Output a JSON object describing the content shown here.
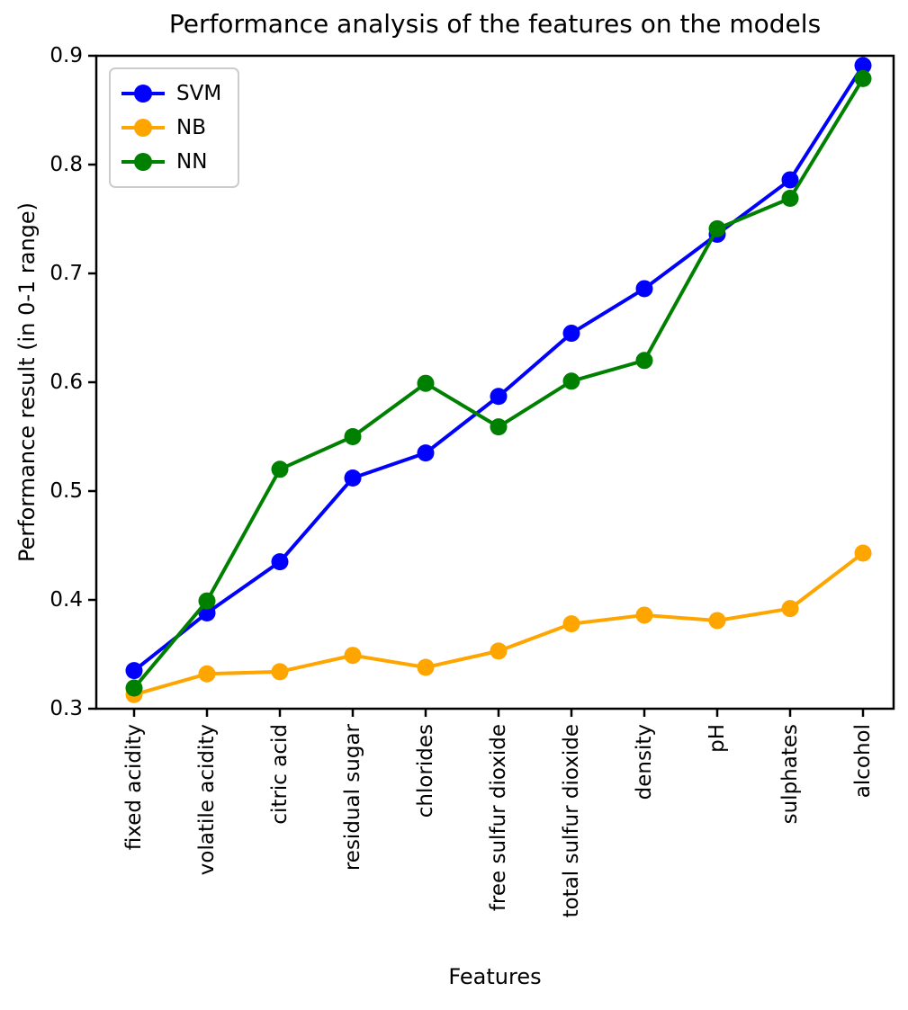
{
  "chart_data": {
    "type": "line",
    "title": "Performance analysis of the features on the models",
    "xlabel": "Features",
    "ylabel": "Performance result (in 0-1 range)",
    "categories": [
      "fixed acidity",
      "volatile acidity",
      "citric acid",
      "residual sugar",
      "chlorides",
      "free sulfur dioxide",
      "total sulfur dioxide",
      "density",
      "pH",
      "sulphates",
      "alcohol"
    ],
    "series": [
      {
        "name": "SVM",
        "color": "#0000ff",
        "values": [
          0.335,
          0.388,
          0.435,
          0.512,
          0.535,
          0.587,
          0.645,
          0.686,
          0.736,
          0.786,
          0.891
        ]
      },
      {
        "name": "NB",
        "color": "#ffa500",
        "values": [
          0.313,
          0.332,
          0.334,
          0.349,
          0.338,
          0.353,
          0.378,
          0.386,
          0.381,
          0.392,
          0.443
        ]
      },
      {
        "name": "NN",
        "color": "#008000",
        "values": [
          0.319,
          0.399,
          0.52,
          0.55,
          0.599,
          0.559,
          0.601,
          0.62,
          0.741,
          0.769,
          0.879
        ]
      }
    ],
    "ylim": [
      0.3,
      0.9
    ],
    "yticks": [
      "0.3",
      "0.4",
      "0.5",
      "0.6",
      "0.7",
      "0.8",
      "0.9"
    ],
    "legend_position": "upper left",
    "grid": false,
    "colors": {
      "axis": "#000000",
      "legend_border": "#cccccc",
      "background": "#ffffff"
    }
  }
}
